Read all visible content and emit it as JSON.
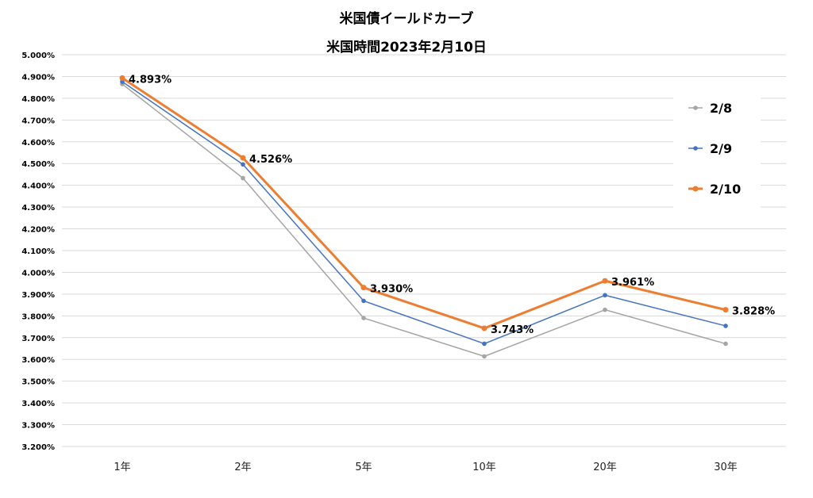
{
  "chart_data": {
    "type": "line",
    "title": "米国債イールドカーブ",
    "subtitle": "米国時間2023年2月10日",
    "categories": [
      "1年",
      "2年",
      "5年",
      "10年",
      "20年",
      "30年"
    ],
    "ylim": [
      3.2,
      5.0
    ],
    "ystep": 0.1,
    "ytick_suffix": "%",
    "ytick_decimals": 3,
    "grid": true,
    "legend_position": "right",
    "series": [
      {
        "name": "2/8",
        "color": "#a5a5a5",
        "values": [
          4.865,
          4.433,
          3.79,
          3.614,
          3.828,
          3.672
        ]
      },
      {
        "name": "2/9",
        "color": "#4472c4",
        "values": [
          4.876,
          4.496,
          3.869,
          3.672,
          3.895,
          3.754
        ]
      },
      {
        "name": "2/10",
        "color": "#ed7d31",
        "values": [
          4.893,
          4.526,
          3.93,
          3.743,
          3.961,
          3.828
        ],
        "data_labels": [
          "4.893%",
          "4.526%",
          "3.930%",
          "3.743%",
          "3.961%",
          "3.828%"
        ]
      }
    ]
  }
}
